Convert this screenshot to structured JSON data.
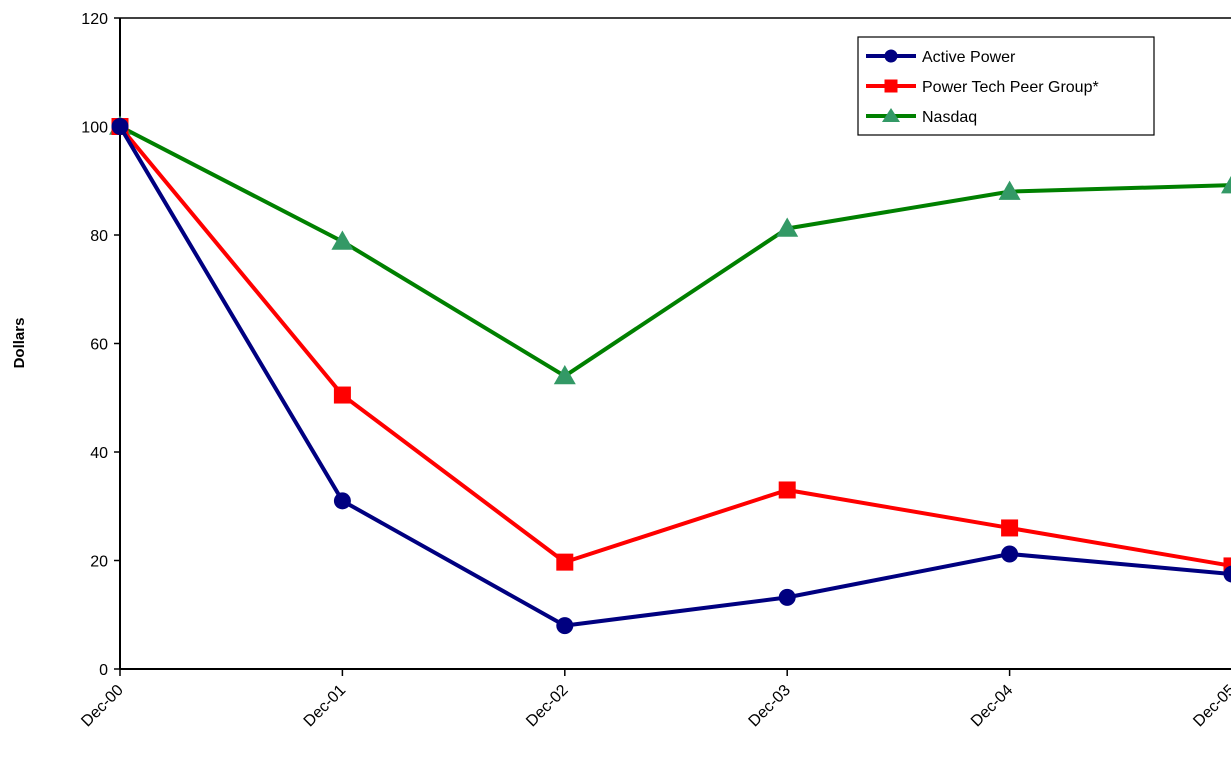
{
  "chart_data": {
    "type": "line",
    "title": "",
    "xlabel": "",
    "ylabel": "Dollars",
    "categories": [
      "Dec-00",
      "Dec-01",
      "Dec-02",
      "Dec-03",
      "Dec-04",
      "Dec-05"
    ],
    "ylim": [
      0,
      120
    ],
    "yticks": [
      0,
      20,
      40,
      60,
      80,
      100,
      120
    ],
    "grid": false,
    "legend_position": "top-right",
    "series": [
      {
        "name": "Active Power",
        "color": "#000080",
        "marker": "circle",
        "values": [
          100,
          31,
          8,
          13.2,
          21.2,
          17.5
        ]
      },
      {
        "name": "Power Tech Peer Group*",
        "color": "#ff0000",
        "marker": "square",
        "values": [
          100,
          50.5,
          19.7,
          33,
          26,
          19
        ]
      },
      {
        "name": "Nasdaq",
        "color": "#008000",
        "marker_color": "#339966",
        "marker": "triangle",
        "values": [
          100,
          78.8,
          54,
          81.2,
          88,
          89.2
        ]
      }
    ]
  }
}
